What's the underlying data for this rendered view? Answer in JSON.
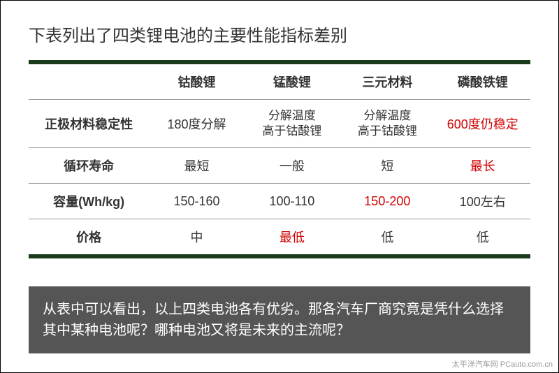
{
  "title": "下表列出了四类锂电池的主要性能指标差别",
  "table": {
    "columns": [
      "",
      "钴酸锂",
      "锰酸锂",
      "三元材料",
      "磷酸铁锂"
    ],
    "rows": [
      {
        "header": "正极材料稳定性",
        "cells": [
          {
            "text": "180度分解",
            "highlight": false
          },
          {
            "text": "分解温度\n高于钴酸锂",
            "highlight": false,
            "multiline": true
          },
          {
            "text": "分解温度\n高于钴酸锂",
            "highlight": false,
            "multiline": true
          },
          {
            "text": "600度仍稳定",
            "highlight": true
          }
        ]
      },
      {
        "header": "循环寿命",
        "cells": [
          {
            "text": "最短",
            "highlight": false
          },
          {
            "text": "一般",
            "highlight": false
          },
          {
            "text": "短",
            "highlight": false
          },
          {
            "text": "最长",
            "highlight": true
          }
        ]
      },
      {
        "header": "容量(Wh/kg)",
        "cells": [
          {
            "text": "150-160",
            "highlight": false
          },
          {
            "text": "100-110",
            "highlight": false
          },
          {
            "text": "150-200",
            "highlight": true
          },
          {
            "text": "100左右",
            "highlight": false
          }
        ]
      },
      {
        "header": "价格",
        "cells": [
          {
            "text": "中",
            "highlight": false
          },
          {
            "text": "最低",
            "highlight": true
          },
          {
            "text": "低",
            "highlight": false
          },
          {
            "text": "低",
            "highlight": false
          }
        ]
      }
    ],
    "col_widths": [
      "24%",
      "19%",
      "19%",
      "19%",
      "19%"
    ],
    "border_color": "#1a3a1a",
    "highlight_color": "#d00000",
    "text_color": "#333333",
    "header_fontsize": 18,
    "cell_fontsize": 18
  },
  "footer": "从表中可以看出，以上四类电池各有优劣。那各汽车厂商究竟是凭什么选择其中某种电池呢？哪种电池又将是未来的主流呢？",
  "footer_bg": "#555555",
  "footer_color": "#ffffff",
  "watermark": "太平洋汽车网 PCauto.com.cn"
}
